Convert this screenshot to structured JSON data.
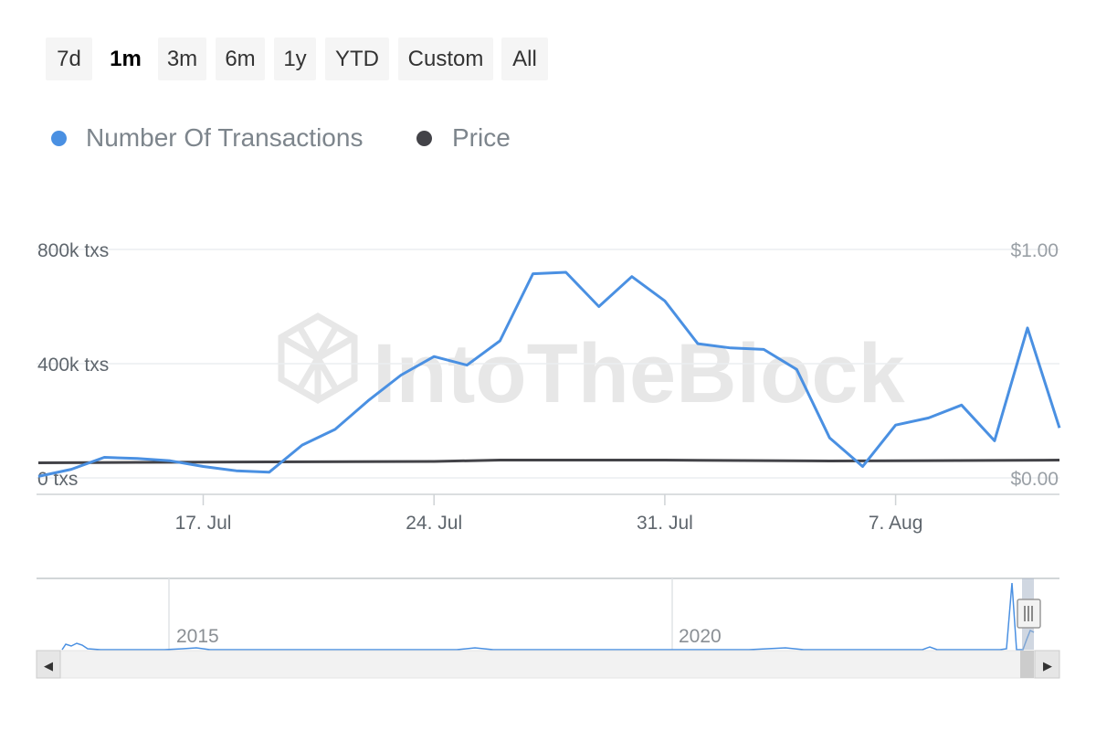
{
  "range_selector": {
    "buttons": [
      {
        "label": "7d",
        "active": false
      },
      {
        "label": "1m",
        "active": true
      },
      {
        "label": "3m",
        "active": false
      },
      {
        "label": "6m",
        "active": false
      },
      {
        "label": "1y",
        "active": false
      },
      {
        "label": "YTD",
        "active": false
      },
      {
        "label": "Custom",
        "active": false
      },
      {
        "label": "All",
        "active": false
      }
    ]
  },
  "legend": [
    {
      "label": "Number Of Transactions",
      "color": "#4a90e2"
    },
    {
      "label": "Price",
      "color": "#434348"
    }
  ],
  "watermark": "IntoTheBlock",
  "chart_data": {
    "type": "line",
    "grid": true,
    "x_ticks": [
      "17. Jul",
      "24. Jul",
      "31. Jul",
      "7. Aug"
    ],
    "left_axis": {
      "ticks": [
        "0 txs",
        "400k txs",
        "800k txs"
      ],
      "ylim": [
        0,
        800000
      ]
    },
    "right_axis": {
      "ticks": [
        "$0.00",
        "$1.00"
      ],
      "ylim": [
        0,
        1
      ]
    },
    "series": [
      {
        "name": "Number Of Transactions",
        "color": "#4a90e2",
        "axis": "left",
        "points": [
          [
            "2023-07-12",
            5000
          ],
          [
            "2023-07-13",
            30000
          ],
          [
            "2023-07-14",
            72000
          ],
          [
            "2023-07-15",
            68000
          ],
          [
            "2023-07-16",
            60000
          ],
          [
            "2023-07-17",
            40000
          ],
          [
            "2023-07-18",
            25000
          ],
          [
            "2023-07-19",
            20000
          ],
          [
            "2023-07-20",
            115000
          ],
          [
            "2023-07-21",
            170000
          ],
          [
            "2023-07-22",
            270000
          ],
          [
            "2023-07-23",
            360000
          ],
          [
            "2023-07-24",
            425000
          ],
          [
            "2023-07-25",
            395000
          ],
          [
            "2023-07-26",
            480000
          ],
          [
            "2023-07-27",
            715000
          ],
          [
            "2023-07-28",
            720000
          ],
          [
            "2023-07-29",
            600000
          ],
          [
            "2023-07-30",
            705000
          ],
          [
            "2023-07-31",
            620000
          ],
          [
            "2023-08-01",
            470000
          ],
          [
            "2023-08-02",
            455000
          ],
          [
            "2023-08-03",
            450000
          ],
          [
            "2023-08-04",
            380000
          ],
          [
            "2023-08-05",
            140000
          ],
          [
            "2023-08-06",
            40000
          ],
          [
            "2023-08-07",
            185000
          ],
          [
            "2023-08-08",
            210000
          ],
          [
            "2023-08-09",
            255000
          ],
          [
            "2023-08-10",
            130000
          ],
          [
            "2023-08-11",
            525000
          ],
          [
            "2023-08-12",
            175000
          ]
        ]
      },
      {
        "name": "Price",
        "color": "#434348",
        "axis": "right",
        "points": [
          [
            "2023-07-12",
            0.066
          ],
          [
            "2023-07-15",
            0.068
          ],
          [
            "2023-07-19",
            0.07
          ],
          [
            "2023-07-24",
            0.072
          ],
          [
            "2023-07-26",
            0.078
          ],
          [
            "2023-07-31",
            0.078
          ],
          [
            "2023-08-05",
            0.074
          ],
          [
            "2023-08-12",
            0.078
          ]
        ]
      }
    ]
  },
  "navigator": {
    "labels": [
      "2015",
      "2020"
    ],
    "scroll_left_arrow": "◀",
    "scroll_right_arrow": "▶"
  }
}
